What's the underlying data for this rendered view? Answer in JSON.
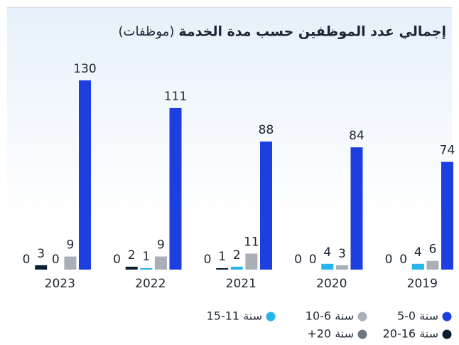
{
  "chart_data": {
    "type": "bar",
    "title": "إجمالي عدد الموظفين حسب مدة الخدمة",
    "title_unit": "(موظفات)",
    "categories": [
      "2019",
      "2020",
      "2021",
      "2022",
      "2023"
    ],
    "series": [
      {
        "name": "5-0 سنة",
        "color": "#1e3fe0",
        "values": [
          74,
          84,
          88,
          111,
          130
        ]
      },
      {
        "name": "10-6 سنة",
        "color": "#a9afb6",
        "values": [
          6,
          3,
          11,
          9,
          9
        ]
      },
      {
        "name": "15-11 سنة",
        "color": "#27b3ec",
        "values": [
          4,
          4,
          2,
          1,
          0
        ]
      },
      {
        "name": "20-16 سنة",
        "color": "#0b1e30",
        "values": [
          0,
          0,
          1,
          2,
          3
        ]
      },
      {
        "name": "+20 سنة",
        "color": "#6c7780",
        "values": [
          0,
          0,
          0,
          0,
          0
        ]
      }
    ]
  }
}
